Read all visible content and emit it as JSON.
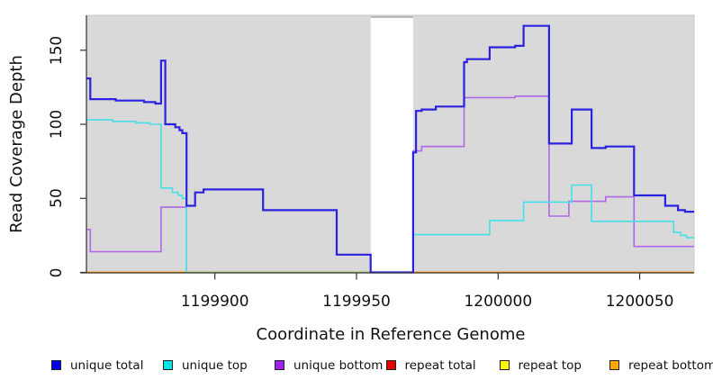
{
  "figure": {
    "x_axis_title": "Coordinate in Reference Genome",
    "y_axis_title": "Read Coverage Depth"
  },
  "chart_data": {
    "type": "line",
    "subtype": "step-coverage",
    "title": "",
    "xlabel": "Coordinate in Reference Genome",
    "ylabel": "Read Coverage Depth",
    "xlim": [
      1199854.8,
      1200069.2
    ],
    "ylim": [
      0,
      173.6
    ],
    "x_ticks": [
      1199900,
      1199950,
      1200000,
      1200050
    ],
    "y_ticks": [
      0,
      50,
      100,
      150
    ],
    "grid": false,
    "plot_bg": "#d9d9d9",
    "plot_border": "#c6c6c6",
    "axis_color": "#333333",
    "masked_region": {
      "from": 1199955,
      "to": 1199970,
      "color": "#ffffff",
      "border_color": "#999999"
    },
    "baseline_overlay": {
      "from": 1199890,
      "to": 1199955,
      "value": 0,
      "color": "#82cd8c"
    },
    "legend_position": "bottom",
    "legend": [
      {
        "label": "unique total",
        "color": "#0000ee"
      },
      {
        "label": "unique top",
        "color": "#00e6e6"
      },
      {
        "label": "unique bottom",
        "color": "#a020f0"
      },
      {
        "label": "repeat total",
        "color": "#e60000"
      },
      {
        "label": "repeat top",
        "color": "#ffff00"
      },
      {
        "label": "repeat bottom",
        "color": "#ffa500"
      }
    ],
    "series": [
      {
        "name": "repeat total",
        "color": "#e60000",
        "width": 1.5,
        "paths": [
          {
            "pts": [
              [
                1199854.8,
                0
              ]
            ],
            "end": 1200069.2
          }
        ]
      },
      {
        "name": "repeat top",
        "color": "#ffff00",
        "width": 1.5,
        "paths": [
          {
            "pts": [
              [
                1199854.8,
                0
              ]
            ],
            "end": 1200069.2
          }
        ]
      },
      {
        "name": "repeat bottom",
        "color": "#ffa011",
        "width": 2,
        "paths": [
          {
            "pts": [
              [
                1199854.8,
                0
              ]
            ],
            "end": 1200069.2
          }
        ]
      },
      {
        "name": "unique bottom",
        "color": "#b168e6",
        "width": 1.6,
        "paths": [
          {
            "pts": [
              [
                1199854.8,
                29
              ],
              [
                1199856,
                14
              ],
              [
                1199881,
                44
              ],
              [
                1199890,
                0
              ]
            ],
            "end": 1199890
          },
          {
            "pts": [
              [
                1199970,
                0
              ],
              [
                1199970,
                82
              ],
              [
                1199973,
                85
              ],
              [
                1199988,
                118
              ],
              [
                1200006,
                119
              ],
              [
                1200018,
                38
              ],
              [
                1200025,
                48
              ],
              [
                1200038,
                51
              ],
              [
                1200048,
                17.5
              ]
            ],
            "end": 1200069.2
          }
        ]
      },
      {
        "name": "unique top",
        "color": "#45dfe8",
        "width": 1.6,
        "paths": [
          {
            "pts": [
              [
                1199854.8,
                103
              ],
              [
                1199864,
                102
              ],
              [
                1199872,
                101
              ],
              [
                1199877,
                100
              ],
              [
                1199881,
                57
              ],
              [
                1199885,
                54
              ],
              [
                1199887,
                52
              ],
              [
                1199888.5,
                50
              ],
              [
                1199890,
                0
              ]
            ],
            "end": 1199890
          },
          {
            "pts": [
              [
                1199970,
                0
              ],
              [
                1199970,
                25.5
              ],
              [
                1199997,
                35
              ],
              [
                1200009,
                47.5
              ],
              [
                1200026,
                59
              ],
              [
                1200033,
                34.5
              ],
              [
                1200062,
                27
              ],
              [
                1200064.5,
                25
              ],
              [
                1200066.5,
                23.5
              ]
            ],
            "end": 1200069.2
          }
        ]
      },
      {
        "name": "unique total",
        "color": "#2b22e0",
        "width": 2.2,
        "paths": [
          {
            "pts": [
              [
                1199854.8,
                131
              ],
              [
                1199856,
                117
              ],
              [
                1199865,
                116
              ],
              [
                1199875,
                115
              ],
              [
                1199879,
                114
              ],
              [
                1199881,
                143
              ],
              [
                1199882.5,
                100
              ],
              [
                1199886,
                98
              ],
              [
                1199887.5,
                96
              ],
              [
                1199888.5,
                94
              ],
              [
                1199890,
                45
              ],
              [
                1199893,
                54
              ],
              [
                1199896,
                56
              ],
              [
                1199917,
                42
              ],
              [
                1199943,
                12
              ],
              [
                1199955,
                0
              ],
              [
                1199970,
                81
              ],
              [
                1199971,
                109
              ],
              [
                1199973,
                110
              ],
              [
                1199978,
                112
              ],
              [
                1199988,
                142
              ],
              [
                1199989,
                144
              ],
              [
                1199997,
                152
              ],
              [
                1200006,
                153
              ],
              [
                1200009,
                166.5
              ],
              [
                1200018,
                87
              ],
              [
                1200026,
                110
              ],
              [
                1200033,
                84
              ],
              [
                1200038,
                85
              ],
              [
                1200048,
                52
              ],
              [
                1200059,
                45
              ],
              [
                1200063.5,
                42
              ],
              [
                1200066,
                41
              ]
            ],
            "end": 1200069.2
          }
        ]
      }
    ]
  }
}
